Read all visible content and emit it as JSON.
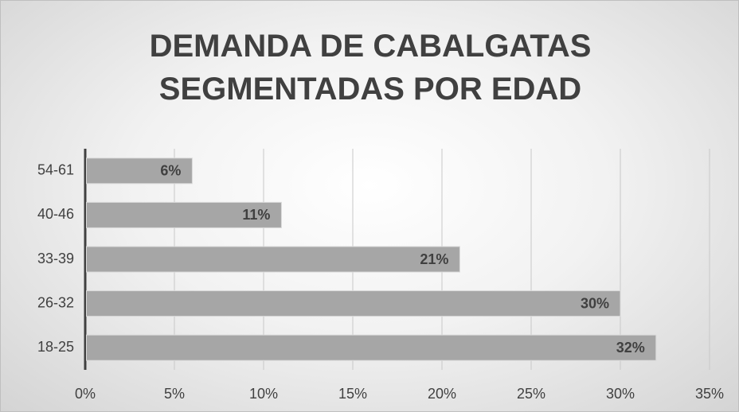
{
  "chart_data": {
    "type": "barh",
    "title": "DEMANDA DE CABALGATAS SEGMENTADAS POR EDAD",
    "categories": [
      "18-25",
      "26-32",
      "33-39",
      "40-46",
      "54-61"
    ],
    "values": [
      32,
      30,
      21,
      11,
      6
    ],
    "value_labels": [
      "32%",
      "30%",
      "21%",
      "11%",
      "6%"
    ],
    "color": "#a6a6a6",
    "xlim": [
      0,
      35
    ],
    "xticks": [
      {
        "value": 0,
        "label": "0%"
      },
      {
        "value": 5,
        "label": "5%"
      },
      {
        "value": 10,
        "label": "10%"
      },
      {
        "value": 15,
        "label": "15%"
      },
      {
        "value": 20,
        "label": "20%"
      },
      {
        "value": 25,
        "label": "25%"
      },
      {
        "value": 30,
        "label": "30%"
      },
      {
        "value": 35,
        "label": "35%"
      }
    ],
    "grid": true
  }
}
